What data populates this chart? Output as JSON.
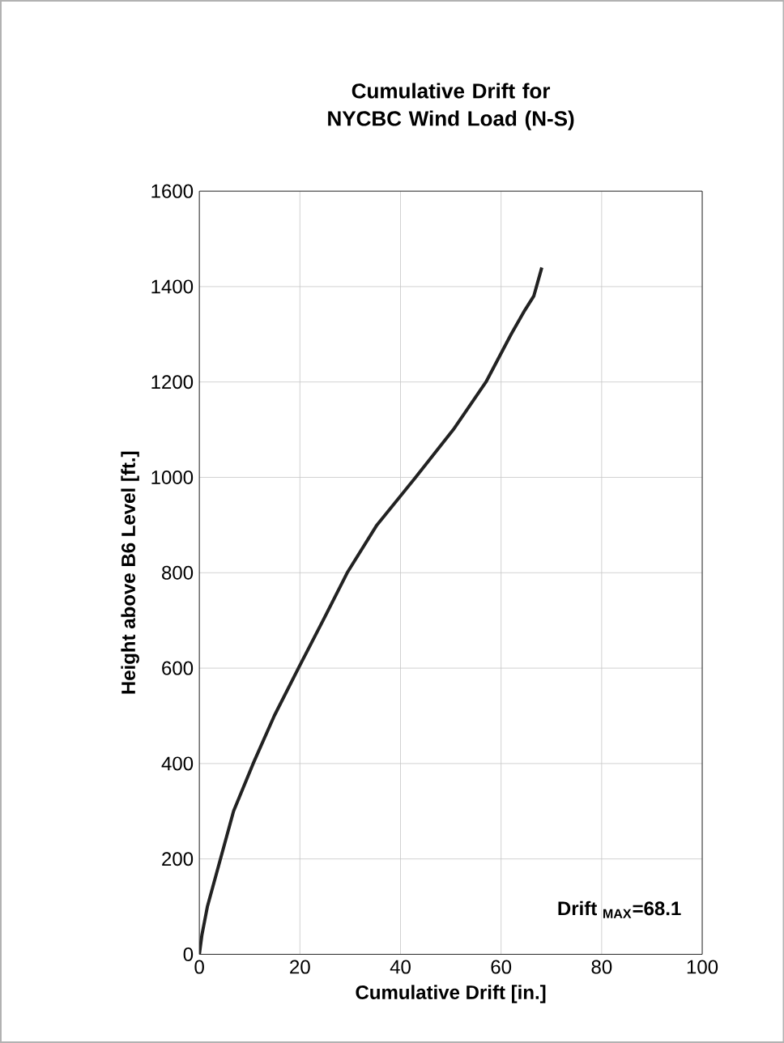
{
  "chart_data": {
    "type": "line",
    "title": "Cumulative Drift for NYCBC Wind Load (N-S)",
    "xlabel": "Cumulative Drift [in.]",
    "ylabel": "Height above B6 Level [ft.]",
    "xlim": [
      0,
      100
    ],
    "xticks": [
      0,
      20,
      40,
      60,
      80,
      100
    ],
    "ylim": [
      0,
      1600
    ],
    "yticks": [
      0,
      200,
      400,
      600,
      800,
      1000,
      1200,
      1400,
      1600
    ],
    "grid": true,
    "annotations": [
      "Drift $_{MAX}$=68.1"
    ],
    "series": [
      {
        "color": "#222222",
        "x": [
          0,
          0.5,
          1.6,
          4.2,
          6.8,
          10.7,
          14.9,
          19.7,
          24.6,
          29.4,
          35.3,
          43,
          50.5,
          57,
          62,
          64.7,
          66.5,
          68.1
        ],
        "values": [
          0,
          40,
          100,
          200,
          300,
          400,
          500,
          600,
          700,
          800,
          900,
          1000,
          1100,
          1200,
          1300,
          1350,
          1380,
          1440
        ]
      }
    ]
  }
}
